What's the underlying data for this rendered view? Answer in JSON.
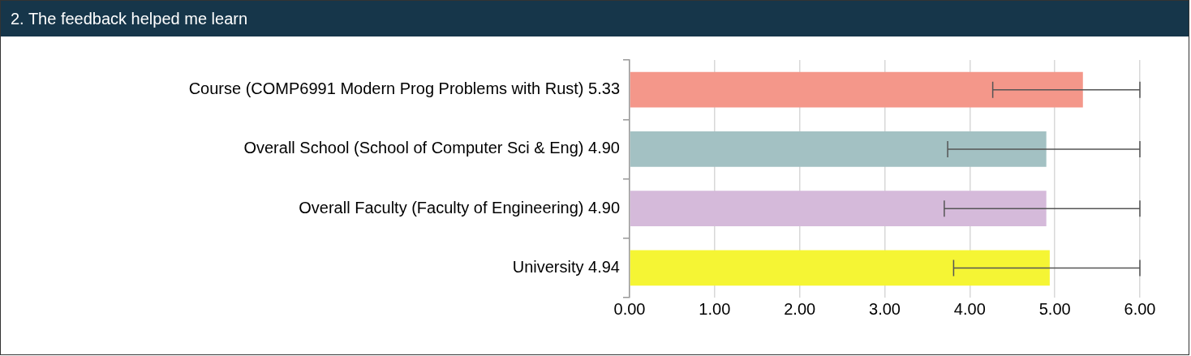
{
  "chart_data": {
    "type": "bar",
    "title": "2. The feedback helped me learn",
    "orientation": "horizontal",
    "categories": [
      "Course (COMP6991 Modern Prog Problems with Rust) 5.33",
      "Overall School (School of Computer Sci & Eng) 4.90",
      "Overall Faculty (Faculty of Engineering) 4.90",
      "University 4.94"
    ],
    "values": [
      5.33,
      4.9,
      4.9,
      4.94
    ],
    "colors": [
      "#f4978a",
      "#a3c1c3",
      "#d5bada",
      "#f5f534"
    ],
    "errors": [
      [
        4.27,
        6.0
      ],
      [
        3.74,
        6.0
      ],
      [
        3.7,
        6.0
      ],
      [
        3.81,
        6.0
      ]
    ],
    "xlim": [
      0,
      6
    ],
    "xticks": [
      {
        "value": 0,
        "label": "0.00"
      },
      {
        "value": 1,
        "label": "1.00"
      },
      {
        "value": 2,
        "label": "2.00"
      },
      {
        "value": 3,
        "label": "3.00"
      },
      {
        "value": 4,
        "label": "4.00"
      },
      {
        "value": 5,
        "label": "5.00"
      },
      {
        "value": 6,
        "label": "6.00"
      }
    ],
    "grid": "x"
  }
}
